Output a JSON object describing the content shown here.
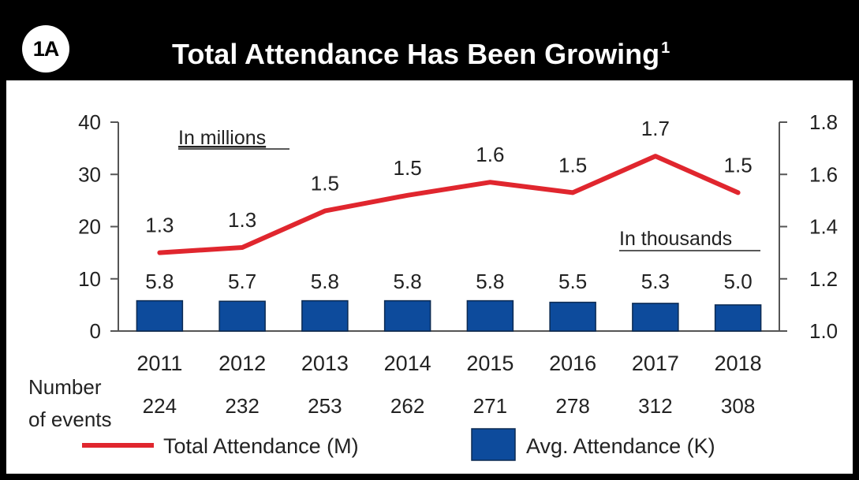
{
  "header": {
    "badge": "1A",
    "title": "Total Attendance Has Been Growing",
    "title_superscript": "1"
  },
  "annotations": {
    "millions_note": "In millions",
    "thousands_note": "In thousands"
  },
  "events": {
    "label_line1": "Number",
    "label_line2": "of events",
    "values": [
      "224",
      "232",
      "253",
      "262",
      "271",
      "278",
      "312",
      "308"
    ]
  },
  "legend": {
    "line_label": "Total Attendance (M)",
    "bar_label": "Avg. Attendance (K)"
  },
  "colors": {
    "line": "#e0262e",
    "bar": "#0d4b9c",
    "header_bg": "#000000"
  },
  "chart_data": {
    "type": "bar",
    "categories": [
      "2011",
      "2012",
      "2013",
      "2014",
      "2015",
      "2016",
      "2017",
      "2018"
    ],
    "series": [
      {
        "name": "Avg. Attendance (K)",
        "type": "bar",
        "axis": "left",
        "values": [
          5.8,
          5.7,
          5.8,
          5.8,
          5.8,
          5.5,
          5.3,
          5.0
        ],
        "labels": [
          "5.8",
          "5.7",
          "5.8",
          "5.8",
          "5.8",
          "5.5",
          "5.3",
          "5.0"
        ]
      },
      {
        "name": "Total Attendance (M)",
        "type": "line",
        "axis": "right",
        "values": [
          1.3,
          1.32,
          1.46,
          1.52,
          1.57,
          1.53,
          1.67,
          1.53
        ],
        "labels": [
          "1.3",
          "1.3",
          "1.5",
          "1.5",
          "1.6",
          "1.5",
          "1.7",
          "1.5"
        ]
      }
    ],
    "y_left": {
      "ylim": [
        0,
        40
      ],
      "ticks": [
        "0",
        "10",
        "20",
        "30",
        "40"
      ]
    },
    "y_right": {
      "ylim": [
        1.0,
        1.8
      ],
      "ticks": [
        "1.0",
        "1.2",
        "1.4",
        "1.6",
        "1.8"
      ]
    },
    "grid": false,
    "legend_position": "bottom"
  }
}
